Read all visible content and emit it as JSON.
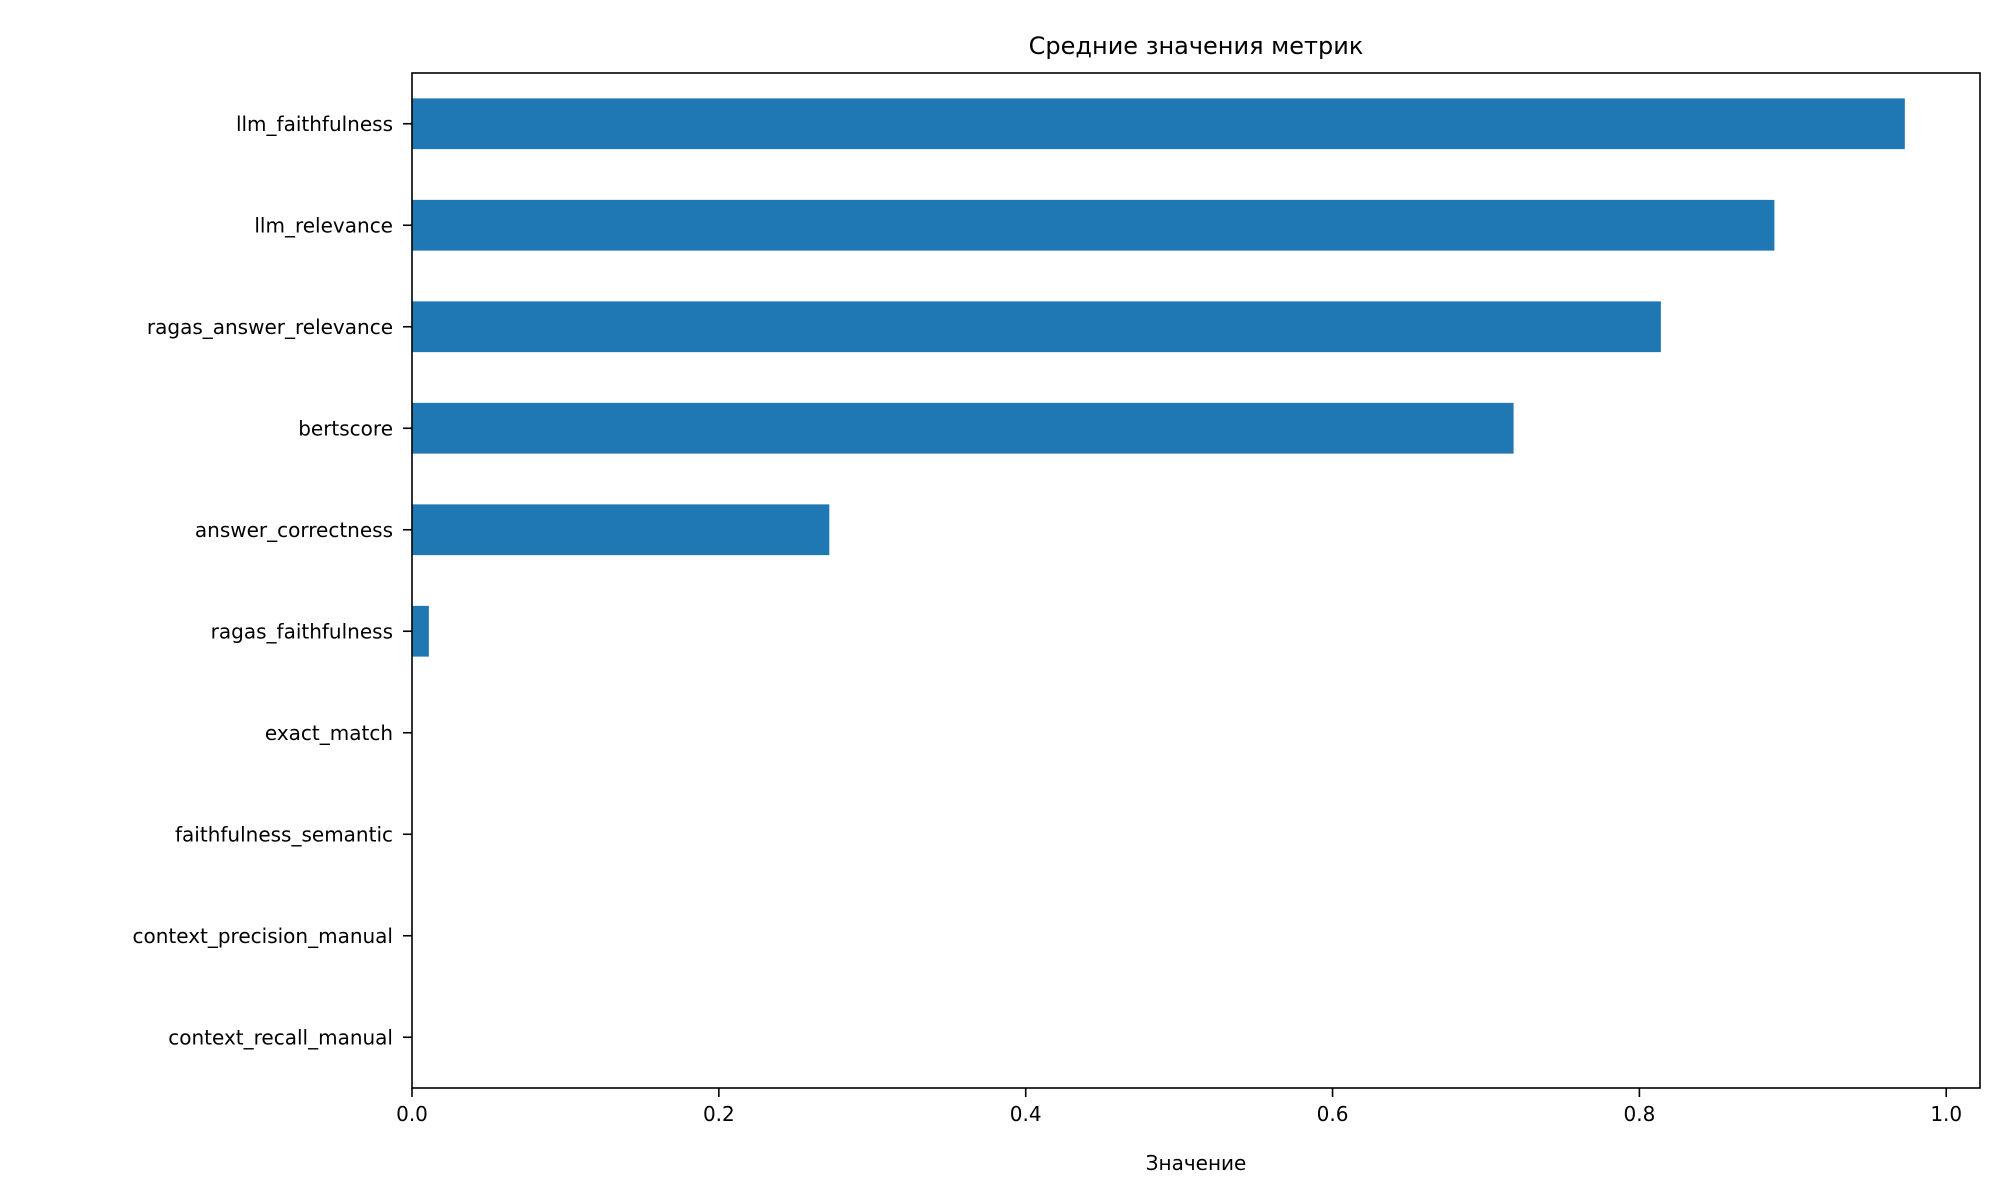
{
  "chart_data": {
    "type": "bar",
    "orientation": "horizontal",
    "title": "Средние значения метрик",
    "xlabel": "Значение",
    "ylabel": "",
    "xlim": [
      0.0,
      1.022
    ],
    "xticks": [
      "0.0",
      "0.2",
      "0.4",
      "0.6",
      "0.8",
      "1.0"
    ],
    "grid": false,
    "legend": "none",
    "bar_color": "#1f77b4",
    "categories": [
      "llm_faithfulness",
      "llm_relevance",
      "ragas_answer_relevance",
      "bertscore",
      "answer_correctness",
      "ragas_faithfulness",
      "exact_match",
      "faithfulness_semantic",
      "context_precision_manual",
      "context_recall_manual"
    ],
    "values": [
      0.973,
      0.888,
      0.814,
      0.718,
      0.272,
      0.011,
      0.0,
      0.0,
      0.0,
      0.0
    ]
  }
}
